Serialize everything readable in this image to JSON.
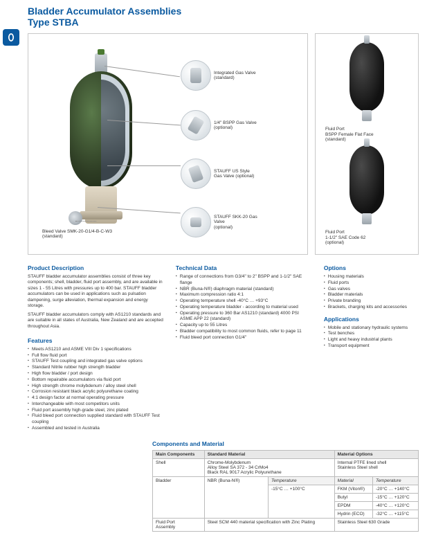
{
  "header": {
    "title": "Bladder Accumulator Assemblies",
    "subtitle": "Type STBA"
  },
  "callouts": {
    "c1": "Integrated Gas Valve\n(standard)",
    "c2": "1/4\" BSPP Gas Valve\n(optional)",
    "c3": "STAUFF US Style\nGas Valve (optional)",
    "c4": "STAUFF SKK-20 Gas Valve\n(optional)",
    "c5": "Bleed Valve SMK-20-G1/4-B-C-W3\n(standard)"
  },
  "side": {
    "top": "Fluid Port\nBSPP Female Flat Face\n(standard)",
    "bot": "Fluid Port\n1-1/2\" SAE Code 62\n(optional)"
  },
  "sections": {
    "prodDesc": {
      "title": "Product Description",
      "p1": "STAUFF bladder accumulator assemblies consist of three key components; shell, bladder, fluid port assembly, and are available in sizes 1 - 55 Litres with pressures up to 400 bar. STAUFF bladder accumulators can be used in applications such as pulsation dampening, surge alleviation, thermal expansion and energy storage.",
      "p2": "STAUFF bladder accumulators comply with AS1210 standards and are suitable in all states of Australia, New Zealand and are accepted throughout Asia."
    },
    "features": {
      "title": "Features",
      "items": [
        "Meets AS1210 and ASME VIII Div 1 specifications",
        "Full flow fluid port",
        "STAUFF Test coupling and integrated gas valve options",
        "Standard Nitrile rubber high strength bladder",
        "High flow bladder / port design",
        "Bottom repairable accumulators via fluid port",
        "High strength chrome molybdenum / alloy steel shell",
        "Corrosion resistant black acrylic polyurethane coating",
        "4:1 design factor at normal operating pressure",
        "Interchangeable with most competitors units",
        "Fluid port assembly high-grade steel, zinc plated",
        "Fluid bleed port connection supplied standard with STAUFF Test coupling",
        "Assembled and tested in Australia"
      ]
    },
    "techData": {
      "title": "Technical Data",
      "items": [
        "Range of connections from G3/4\" to 2\" BSPP and 1-1/2\" SAE flange",
        "NBR (Buna-N®) diaphragm material (standard)",
        "Maximum compression ratio 4:1",
        "Operating temperature shell -40°C … +93°C",
        "Operating temperature bladder - according to material used",
        "Operating pressure to 360 Bar AS1210 (standard) 4000 PSI ASME APP 22 (standard)",
        "Capacity up to 55 Litres",
        "Bladder compatibility to most common fluids, refer to page 11",
        "Fluid bleed port connection G1/4\""
      ]
    },
    "options": {
      "title": "Options",
      "items": [
        "Housing materials",
        "Fluid ports",
        "Gas valves",
        "Bladder materials",
        "Private branding",
        "Brackets, charging kits and accessories"
      ]
    },
    "apps": {
      "title": "Applications",
      "items": [
        "Mobile and stationary hydraulic systems",
        "Test benches",
        "Light and heavy industrial plants",
        "Transport equipment"
      ]
    },
    "compMat": {
      "title": "Components and Material"
    }
  },
  "table": {
    "headers": [
      "Main Components",
      "Standard Material",
      "Material Options"
    ],
    "shell": {
      "name": "Shell",
      "std": "Chrome-Molybdenum\nAlloy Steel SA 372 - 34 CrMo4\nBlack RAL 9017 Acrylic Polyurethane",
      "opt": "Internal PTFE lined shell\nStainless Steel shell"
    },
    "bladder": {
      "name": "Bladder",
      "std": "NBR (Buna-N®)",
      "stdTemp": "-15°C … +100°C",
      "sub": {
        "h1": "Temperature",
        "h2": "Material",
        "h3": "Temperature"
      },
      "rows": [
        {
          "mat": "FKM (Viton®)",
          "temp": "-20°C … +140°C"
        },
        {
          "mat": "Butyl",
          "temp": "-15°C … +120°C"
        },
        {
          "mat": "EPDM",
          "temp": "-40°C … +120°C"
        },
        {
          "mat": "Hydrin (ECO)",
          "temp": "-32°C … +115°C"
        }
      ]
    },
    "fluidport": {
      "name": "Fluid Port\nAssembly",
      "std": "Steel SCM 440 material specification with Zinc Plating",
      "opt": "Stainless Steel 630 Grade"
    }
  }
}
